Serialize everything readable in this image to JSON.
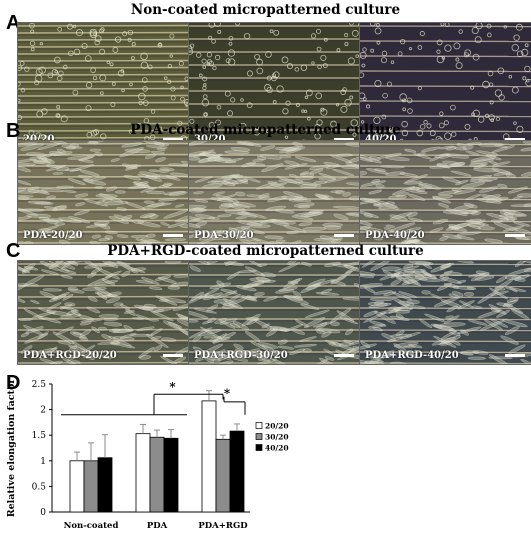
{
  "panels": {
    "A": {
      "letter": "A",
      "title": "Non-coated micropatterned culture",
      "images": [
        "20/20",
        "30/20",
        "40/20"
      ],
      "tones": [
        "#5a5c3a",
        "#3c3e2c",
        "#2f2a3a"
      ]
    },
    "B": {
      "letter": "B",
      "title": "PDA-coated micropatterned culture",
      "images": [
        "PDA-20/20",
        "PDA-30/20",
        "PDA-40/20"
      ],
      "tones": [
        "#76735a",
        "#7a7764",
        "#6c6a5e"
      ]
    },
    "C": {
      "letter": "C",
      "title": "PDA+RGD-coated micropatterned culture",
      "images": [
        "PDA+RGD-20/20",
        "PDA+RGD-30/20",
        "PDA+RGD-40/20"
      ],
      "tones": [
        "#565a48",
        "#4f564c",
        "#404a4e"
      ]
    },
    "D": {
      "letter": "D"
    }
  },
  "chart_data": {
    "type": "bar",
    "ylabel": "Relative elongation factor",
    "ylim": [
      0,
      2.5
    ],
    "yticks": [
      "0",
      "0.5",
      "1",
      "1.5",
      "2",
      "2.5"
    ],
    "categories": [
      "Non-coated",
      "PDA",
      "PDA+RGD"
    ],
    "series": [
      {
        "name": "20/20",
        "color": "#ffffff",
        "values": [
          1.0,
          1.53,
          2.17
        ],
        "errors": [
          0.17,
          0.18,
          0.2
        ]
      },
      {
        "name": "30/20",
        "color": "#8c8c8c",
        "values": [
          1.0,
          1.46,
          1.42
        ],
        "errors": [
          0.35,
          0.14,
          0.08
        ]
      },
      {
        "name": "40/20",
        "color": "#000000",
        "values": [
          1.06,
          1.44,
          1.58
        ],
        "errors": [
          0.45,
          0.17,
          0.14
        ]
      }
    ],
    "significance": [
      "*",
      "*"
    ],
    "legend_position": "right"
  }
}
